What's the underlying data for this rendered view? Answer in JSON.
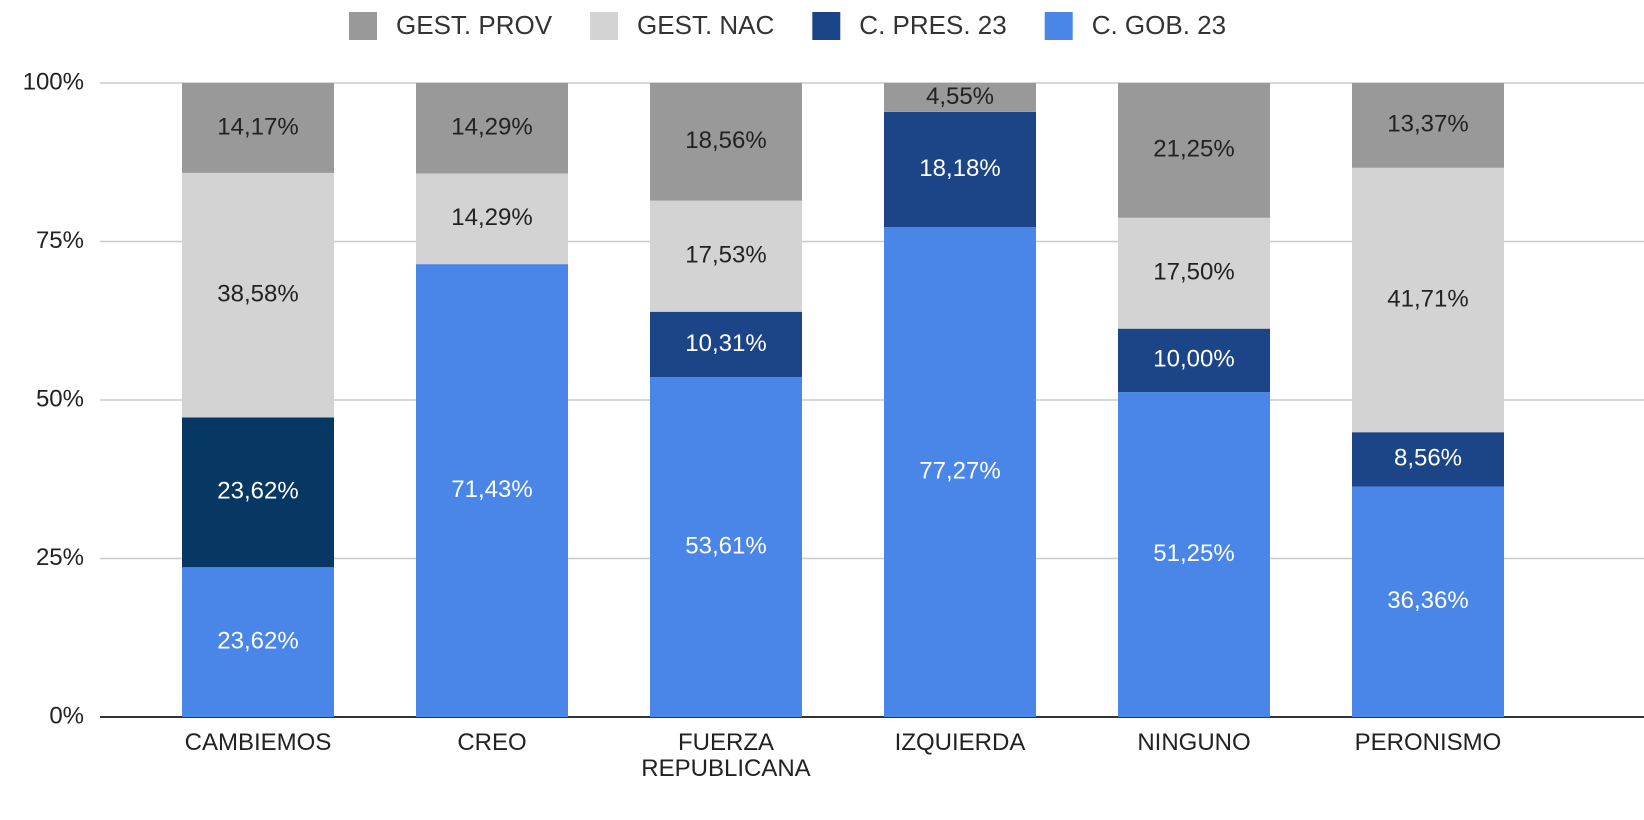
{
  "chart_data": {
    "type": "stacked_bar",
    "categories": [
      "CAMBIEMOS",
      "CREO",
      "FUERZA REPUBLICANA",
      "IZQUIERDA",
      "NINGUNO",
      "PERONISMO"
    ],
    "series": [
      {
        "name": "C. GOB. 23",
        "color": "#4a86e8",
        "values": [
          23.62,
          71.43,
          53.61,
          77.27,
          51.25,
          36.36
        ],
        "value_labels": [
          "23,62%",
          "71,43%",
          "53,61%",
          "77,27%",
          "51,25%",
          "36,36%"
        ]
      },
      {
        "name": "C. PRES. 23",
        "color": "#1c4587",
        "colors": [
          "#073763",
          "#1c4587",
          "#1c4587",
          "#1c4587",
          "#1c4587",
          "#1c4587"
        ],
        "values": [
          23.62,
          null,
          10.31,
          18.18,
          10.0,
          8.56
        ],
        "value_labels": [
          "23,62%",
          null,
          "10,31%",
          "18,18%",
          "10,00%",
          "8,56%"
        ]
      },
      {
        "name": "GEST. NAC",
        "color": "#d3d3d3",
        "values": [
          38.58,
          14.29,
          17.53,
          null,
          17.5,
          41.71
        ],
        "value_labels": [
          "38,58%",
          "14,29%",
          "17,53%",
          null,
          "17,50%",
          "41,71%"
        ]
      },
      {
        "name": "GEST. PROV",
        "color": "#999999",
        "values": [
          14.17,
          14.29,
          18.56,
          4.55,
          21.25,
          13.37
        ],
        "value_labels": [
          "14,17%",
          "14,29%",
          "18,56%",
          "4,55%",
          "21,25%",
          "13,37%"
        ]
      }
    ],
    "ylim": [
      0,
      100
    ],
    "yticks": [
      {
        "value": 0,
        "label": "0%"
      },
      {
        "value": 25,
        "label": "25%"
      },
      {
        "value": 50,
        "label": "50%"
      },
      {
        "value": 75,
        "label": "75%"
      },
      {
        "value": 100,
        "label": "100%"
      }
    ],
    "grid": true,
    "legend": "top"
  }
}
